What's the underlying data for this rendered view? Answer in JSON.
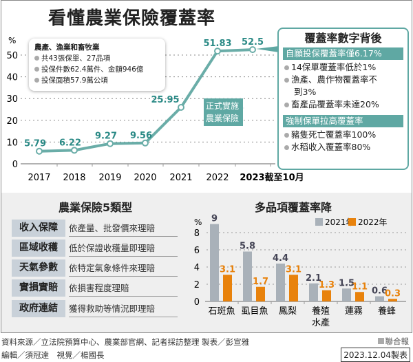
{
  "title": "看懂農業保險覆蓋率",
  "chart_data": [
    {
      "type": "line",
      "ylabel": "%",
      "ylim": [
        0,
        50
      ],
      "yticks": [
        0,
        10,
        20,
        30,
        40,
        50
      ],
      "grid": true,
      "categories": [
        "2017",
        "2018",
        "2019",
        "2020",
        "2021",
        "2022",
        "2023截至10月"
      ],
      "values": [
        5.79,
        6.22,
        9.27,
        9.56,
        25.95,
        51.83,
        52.5
      ],
      "labels": [
        "5.79",
        "6.22",
        "9.27",
        "9.56",
        "25.95",
        "51.83",
        "52.5"
      ],
      "color": "#6aada8"
    },
    {
      "type": "bar",
      "title": "多品項覆蓋率降",
      "ylabel": "%",
      "ylim": [
        0,
        8
      ],
      "yticks": [
        0,
        2,
        4,
        6,
        8
      ],
      "grid": true,
      "legend": "top-right",
      "categories": [
        "石斑魚",
        "虱目魚",
        "鳳梨",
        "養殖\n水產",
        "蓮霧",
        "養蜂"
      ],
      "series": [
        {
          "name": "2021年",
          "values": [
            9,
            5.8,
            4.4,
            2.1,
            1.5,
            0.6
          ],
          "color": "#a9b1b9"
        },
        {
          "name": "2022年",
          "values": [
            3.1,
            1.7,
            3.1,
            1.3,
            1.1,
            0.3
          ],
          "color": "#e8820c"
        }
      ]
    }
  ],
  "infobox": {
    "heading": "農產、漁業和畜牧業",
    "items": [
      "共43張保單、27品項",
      "投保件數62.4萬件、金額946億",
      "投保面積57.9萬公頃"
    ]
  },
  "callout": "正式實施農業保險法",
  "right_box": {
    "title": "覆蓋率數字背後",
    "bar1": "自願投保覆蓋率僅6.17%",
    "items1": [
      "14保單覆蓋率低於1%",
      "漁產、農作物覆蓋率不",
      "到3%",
      "畜產品覆蓋率未達20%"
    ],
    "bar2": "強制保單拉高覆蓋率",
    "items2": [
      "豬隻死亡覆蓋率100%",
      "水稻收入覆蓋率80%"
    ]
  },
  "types": {
    "title": "農業保險5類型",
    "rows": [
      {
        "label": "收入保障",
        "desc": "依產量、批發價來理賠"
      },
      {
        "label": "區域收穫",
        "desc": "低於保證收穫量即理賠"
      },
      {
        "label": "天氣參數",
        "desc": "依特定氣象條件來理賠"
      },
      {
        "label": "實損實賠",
        "desc": "依損害程度理賠"
      },
      {
        "label": "政府連結",
        "desc": "獲得救助等情況即理賠"
      }
    ]
  },
  "footer": {
    "line1": "資料來源／立法院預算中心、農業部官網、記者採訪整理 製表／彭宣雅",
    "line2": "編輯／須冠達　視覺／楊國長",
    "brand": "聯合報",
    "date": "2023.12.04製表"
  },
  "colors": {
    "teal": "#5fa8a3",
    "teal_text": "#2b8a86",
    "gray_bar": "#a9b1b9",
    "orange": "#e8820c"
  }
}
